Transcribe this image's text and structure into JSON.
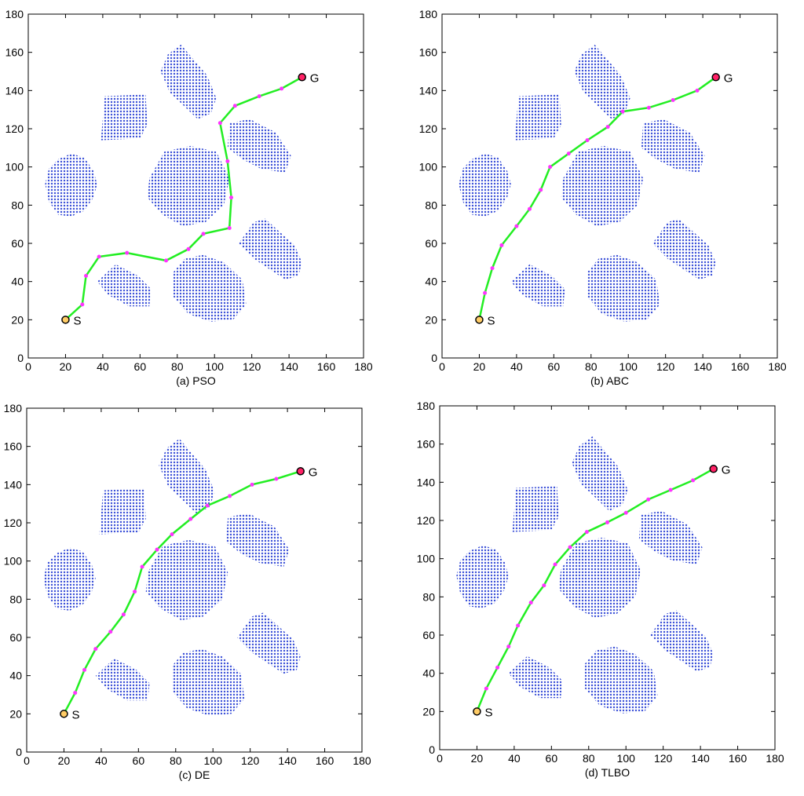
{
  "chart_data": [
    {
      "type": "scatter",
      "caption": "(a) PSO",
      "xlim": [
        0,
        180
      ],
      "ylim": [
        0,
        180
      ],
      "xticks": [
        0,
        20,
        40,
        60,
        80,
        100,
        120,
        140,
        160,
        180
      ],
      "yticks": [
        0,
        20,
        40,
        60,
        80,
        100,
        120,
        140,
        160,
        180
      ],
      "obstacle_color": "#3a4fd8",
      "path_color": "#22ee22",
      "waypoint_color": "#ff33ff",
      "start": {
        "label": "S",
        "x": 20,
        "y": 20
      },
      "goal": {
        "label": "G",
        "x": 147,
        "y": 147
      },
      "path": {
        "x": [
          20,
          29,
          31,
          38,
          53,
          74,
          86,
          94,
          108,
          109,
          107,
          103,
          111,
          124,
          136,
          147
        ],
        "y": [
          20,
          28,
          43,
          53,
          55,
          51,
          57,
          65,
          68,
          84,
          103,
          123,
          132,
          137,
          141,
          147
        ]
      }
    },
    {
      "type": "scatter",
      "caption": "(b) ABC",
      "xlim": [
        0,
        180
      ],
      "ylim": [
        0,
        180
      ],
      "xticks": [
        0,
        20,
        40,
        60,
        80,
        100,
        120,
        140,
        160,
        180
      ],
      "yticks": [
        0,
        20,
        40,
        60,
        80,
        100,
        120,
        140,
        160,
        180
      ],
      "obstacle_color": "#3a4fd8",
      "path_color": "#22ee22",
      "waypoint_color": "#ff33ff",
      "start": {
        "label": "S",
        "x": 20,
        "y": 20
      },
      "goal": {
        "label": "G",
        "x": 147,
        "y": 147
      },
      "path": {
        "x": [
          20,
          23,
          27,
          32,
          40,
          47,
          53,
          58,
          68,
          78,
          89,
          97,
          111,
          124,
          137,
          147
        ],
        "y": [
          20,
          34,
          47,
          59,
          69,
          78,
          88,
          100,
          107,
          114,
          121,
          129,
          131,
          135,
          140,
          147
        ]
      }
    },
    {
      "type": "scatter",
      "caption": "(c) DE",
      "xlim": [
        0,
        180
      ],
      "ylim": [
        0,
        180
      ],
      "xticks": [
        0,
        20,
        40,
        60,
        80,
        100,
        120,
        140,
        160,
        180
      ],
      "yticks": [
        0,
        20,
        40,
        60,
        80,
        100,
        120,
        140,
        160,
        180
      ],
      "obstacle_color": "#3a4fd8",
      "path_color": "#22ee22",
      "waypoint_color": "#ff33ff",
      "start": {
        "label": "S",
        "x": 20,
        "y": 20
      },
      "goal": {
        "label": "G",
        "x": 147,
        "y": 147
      },
      "path": {
        "x": [
          20,
          26,
          31,
          37,
          45,
          52,
          58,
          62,
          70,
          78,
          88,
          97,
          109,
          121,
          134,
          147
        ],
        "y": [
          20,
          31,
          43,
          54,
          63,
          72,
          84,
          97,
          106,
          114,
          122,
          129,
          134,
          140,
          143,
          147
        ]
      }
    },
    {
      "type": "scatter",
      "caption": "(d) TLBO",
      "xlim": [
        0,
        180
      ],
      "ylim": [
        0,
        180
      ],
      "xticks": [
        0,
        20,
        40,
        60,
        80,
        100,
        120,
        140,
        160,
        180
      ],
      "yticks": [
        0,
        20,
        40,
        60,
        80,
        100,
        120,
        140,
        160,
        180
      ],
      "obstacle_color": "#3a4fd8",
      "path_color": "#22ee22",
      "waypoint_color": "#ff33ff",
      "start": {
        "label": "S",
        "x": 20,
        "y": 20
      },
      "goal": {
        "label": "G",
        "x": 147,
        "y": 147
      },
      "path": {
        "x": [
          20,
          25,
          31,
          37,
          42,
          49,
          56,
          62,
          70,
          79,
          90,
          100,
          112,
          124,
          136,
          147
        ],
        "y": [
          20,
          32,
          43,
          54,
          65,
          77,
          86,
          97,
          106,
          114,
          119,
          124,
          131,
          136,
          141,
          147
        ]
      }
    }
  ],
  "obstacles": [
    {
      "name": "circle-left",
      "points": [
        [
          9,
          91
        ],
        [
          11,
          99
        ],
        [
          16,
          104
        ],
        [
          23,
          107
        ],
        [
          30,
          105
        ],
        [
          35,
          98
        ],
        [
          37,
          91
        ],
        [
          35,
          84
        ],
        [
          30,
          77
        ],
        [
          23,
          74
        ],
        [
          16,
          75
        ],
        [
          11,
          82
        ]
      ]
    },
    {
      "name": "square-upper-left",
      "points": [
        [
          41,
          137
        ],
        [
          63,
          138
        ],
        [
          64,
          122
        ],
        [
          60,
          115
        ],
        [
          39,
          114
        ]
      ]
    },
    {
      "name": "rounded-rect-top",
      "points": [
        [
          71,
          150
        ],
        [
          75,
          159
        ],
        [
          82,
          164
        ],
        [
          96,
          148
        ],
        [
          101,
          136
        ],
        [
          98,
          128
        ],
        [
          91,
          125
        ],
        [
          76,
          139
        ]
      ]
    },
    {
      "name": "hexagon-center",
      "points": [
        [
          65,
          94
        ],
        [
          73,
          108
        ],
        [
          87,
          111
        ],
        [
          101,
          108
        ],
        [
          108,
          94
        ],
        [
          105,
          80
        ],
        [
          95,
          71
        ],
        [
          83,
          69
        ],
        [
          72,
          75
        ],
        [
          64,
          84
        ]
      ]
    },
    {
      "name": "hexagon-upper-right",
      "points": [
        [
          108,
          123
        ],
        [
          119,
          125
        ],
        [
          133,
          118
        ],
        [
          141,
          106
        ],
        [
          138,
          97
        ],
        [
          125,
          99
        ],
        [
          115,
          104
        ],
        [
          107,
          110
        ]
      ]
    },
    {
      "name": "pentagon-lower-left",
      "points": [
        [
          37,
          40
        ],
        [
          47,
          49
        ],
        [
          59,
          43
        ],
        [
          66,
          36
        ],
        [
          65,
          27
        ],
        [
          54,
          27
        ],
        [
          43,
          33
        ]
      ]
    },
    {
      "name": "ellipse-bottom-center",
      "points": [
        [
          78,
          45
        ],
        [
          84,
          52
        ],
        [
          94,
          54
        ],
        [
          105,
          50
        ],
        [
          115,
          41
        ],
        [
          117,
          28
        ],
        [
          110,
          20
        ],
        [
          98,
          19
        ],
        [
          86,
          23
        ],
        [
          78,
          32
        ]
      ]
    },
    {
      "name": "rounded-rect-right",
      "points": [
        [
          113,
          60
        ],
        [
          121,
          71
        ],
        [
          127,
          73
        ],
        [
          143,
          59
        ],
        [
          147,
          50
        ],
        [
          145,
          43
        ],
        [
          138,
          41
        ],
        [
          121,
          52
        ]
      ]
    }
  ]
}
